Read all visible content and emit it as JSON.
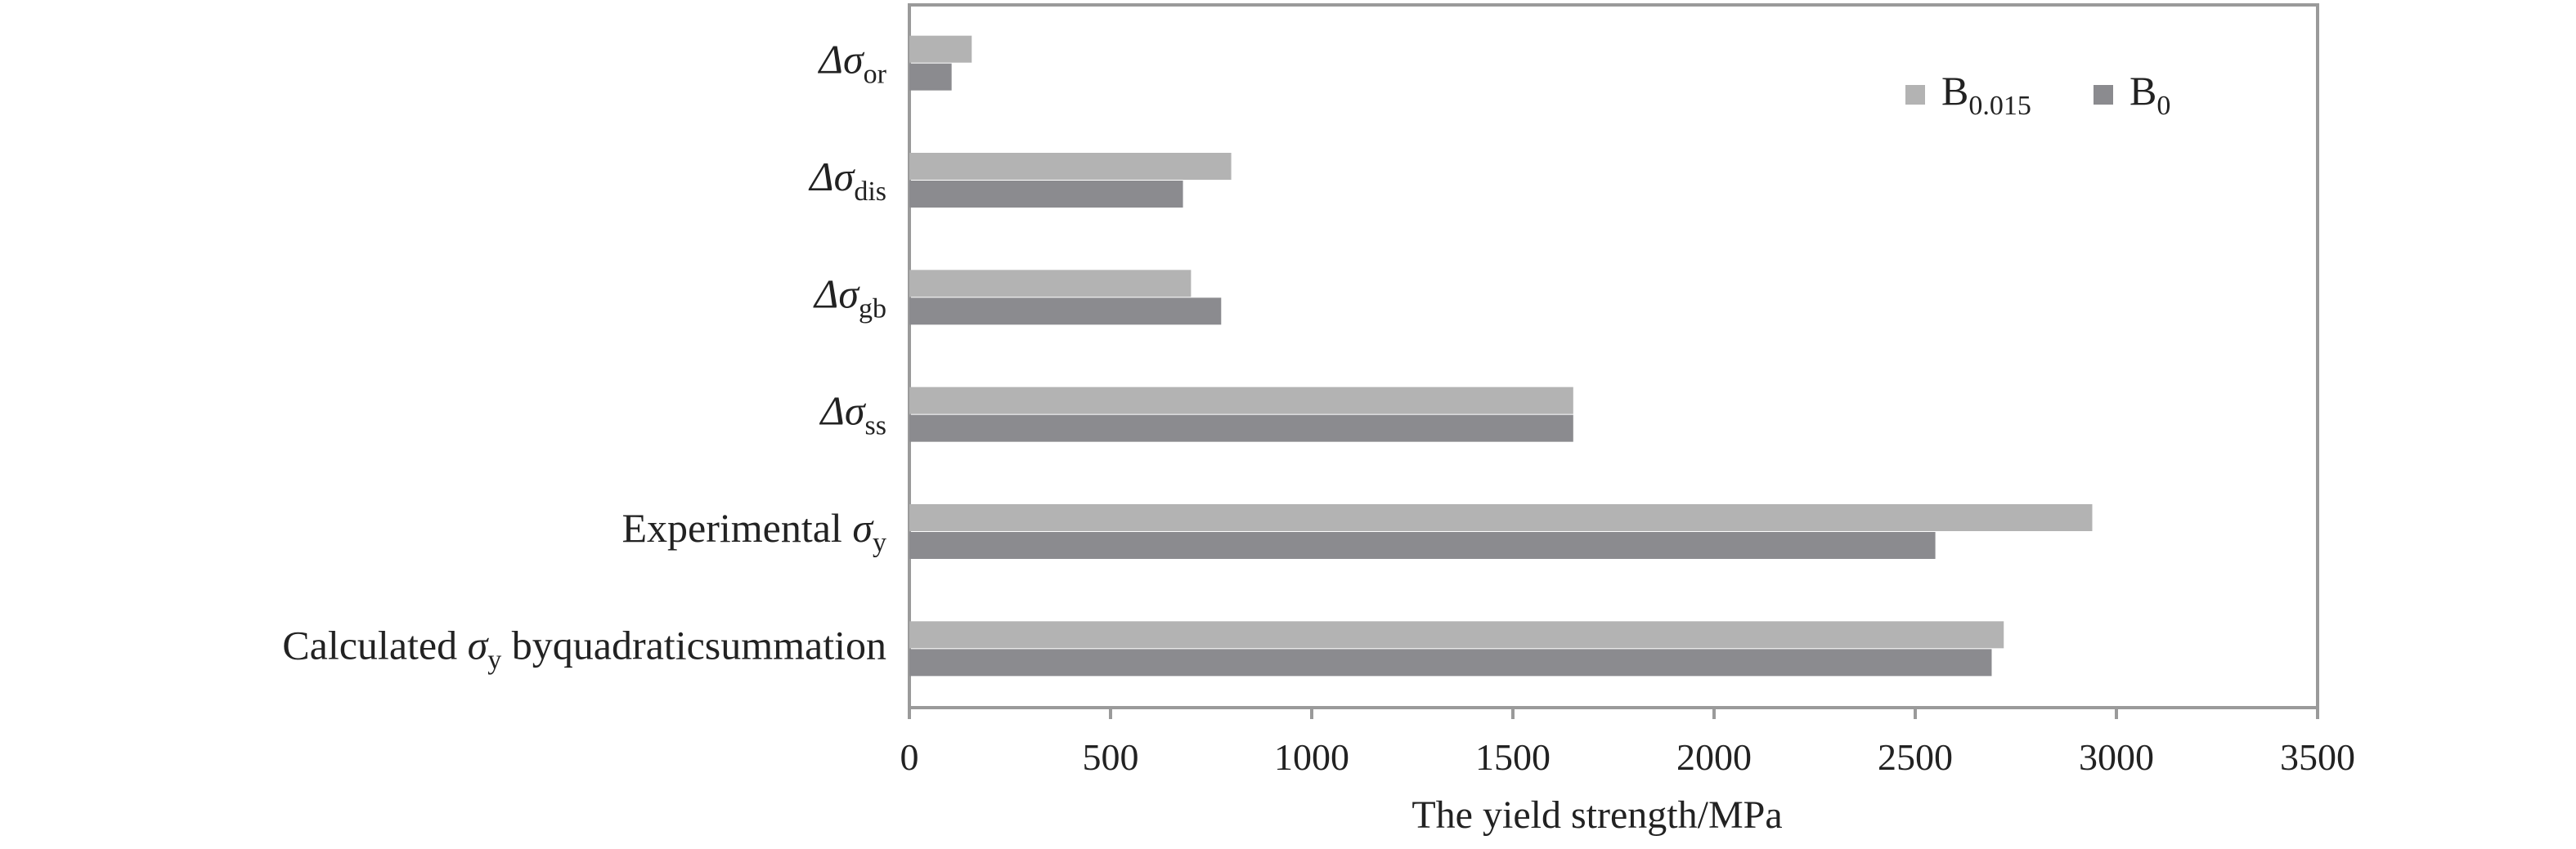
{
  "chart_data": {
    "type": "bar",
    "orientation": "horizontal",
    "categories": [
      {
        "prefix": "",
        "symbol": "Δσ",
        "sub": "or",
        "suffix": ""
      },
      {
        "prefix": "",
        "symbol": "Δσ",
        "sub": "dis",
        "suffix": ""
      },
      {
        "prefix": "",
        "symbol": "Δσ",
        "sub": "gb",
        "suffix": ""
      },
      {
        "prefix": "",
        "symbol": "Δσ",
        "sub": "ss",
        "suffix": ""
      },
      {
        "prefix": "Experimental ",
        "symbol": "σ",
        "sub": "y",
        "suffix": ""
      },
      {
        "prefix": "Calculated ",
        "symbol": "σ",
        "sub": "y",
        "suffix": " byquadraticsummation"
      }
    ],
    "series": [
      {
        "name": "B",
        "name_sub": "0.015",
        "color": "#b3b3b3",
        "values": [
          155,
          800,
          700,
          1650,
          2940,
          2720
        ]
      },
      {
        "name": "B",
        "name_sub": "0",
        "color": "#8b8b8f",
        "values": [
          105,
          680,
          775,
          1650,
          2550,
          2690
        ]
      }
    ],
    "x_ticks": [
      0,
      500,
      1000,
      1500,
      2000,
      2500,
      3000,
      3500
    ],
    "xlim": [
      0,
      3500
    ],
    "xlabel": "The yield strength/MPa",
    "ylabel": "",
    "title": "",
    "grid": false,
    "legend_position": "top-right",
    "axis_color": "#9a9a9a"
  }
}
